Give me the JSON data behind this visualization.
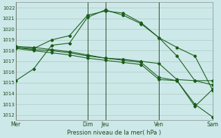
{
  "xlabel": "Pression niveau de la mer( hPa )",
  "bg_color": "#cce8e8",
  "grid_color": "#b0d0c8",
  "line_color": "#1a5c1a",
  "ylim": [
    1011.5,
    1022.5
  ],
  "yticks": [
    1012,
    1013,
    1014,
    1015,
    1016,
    1017,
    1018,
    1019,
    1020,
    1021,
    1022
  ],
  "xlim": [
    0,
    11
  ],
  "xtick_labels": [
    "Mer",
    "Dim",
    "Jeu",
    "Ven",
    "Sam"
  ],
  "xtick_positions": [
    0,
    4,
    5,
    8,
    11
  ],
  "xvlines": [
    0,
    4,
    5,
    8,
    11
  ],
  "series": [
    [
      1015.2,
      1016.3,
      1018.5,
      1018.7,
      1021.1,
      1021.8,
      1021.3,
      1020.5,
      1019.2,
      1018.3,
      1017.5,
      1014.3
    ],
    [
      1018.3,
      1018.2,
      1019.0,
      1019.4,
      1021.3,
      1021.7,
      1021.5,
      1020.6,
      1019.2,
      1017.5,
      1015.2,
      1015.2
    ],
    [
      1018.3,
      1018.1,
      1018.0,
      1017.8,
      1017.5,
      1017.3,
      1017.2,
      1017.0,
      1016.8,
      1015.3,
      1015.2,
      1014.8
    ],
    [
      1018.4,
      1018.3,
      1018.1,
      1017.9,
      1017.6,
      1017.3,
      1017.1,
      1016.9,
      1015.5,
      1015.2,
      1013.0,
      1011.8
    ],
    [
      1018.2,
      1018.0,
      1017.8,
      1017.6,
      1017.3,
      1017.1,
      1016.9,
      1016.7,
      1015.3,
      1015.2,
      1012.8,
      1014.4
    ]
  ]
}
